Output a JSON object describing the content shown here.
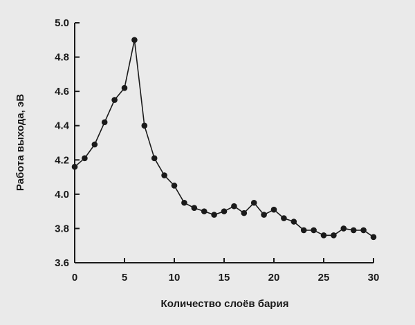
{
  "colors": {
    "background": "#eaeaea",
    "ink": "#1a1a1a"
  },
  "chart_data": {
    "type": "line",
    "title": "",
    "xlabel": "Количество слоёв бария",
    "ylabel": "Работа выхода, эВ",
    "xlim": [
      0,
      30
    ],
    "ylim": [
      3.6,
      5.0
    ],
    "xticks": [
      0,
      5,
      10,
      15,
      20,
      25,
      30
    ],
    "xtick_labels": [
      "0",
      "5",
      "10",
      "15",
      "20",
      "25",
      "30"
    ],
    "yticks": [
      3.6,
      3.8,
      4.0,
      4.2,
      4.4,
      4.6,
      4.8,
      5.0
    ],
    "ytick_labels": [
      "3.6",
      "3.8",
      "4.0",
      "4.2",
      "4.4",
      "4.6",
      "4.8",
      "5.0"
    ],
    "grid": false,
    "legend": "none",
    "series": [
      {
        "x": [
          0,
          1,
          2,
          3,
          4,
          5,
          6,
          7,
          8,
          9,
          10,
          11,
          12,
          13,
          14,
          15,
          16,
          17,
          18,
          19,
          20,
          21,
          22,
          23,
          24,
          25,
          26,
          27,
          28,
          29,
          30
        ],
        "y": [
          4.16,
          4.21,
          4.29,
          4.42,
          4.55,
          4.62,
          4.9,
          4.4,
          4.21,
          4.11,
          4.05,
          3.95,
          3.92,
          3.9,
          3.88,
          3.9,
          3.93,
          3.89,
          3.95,
          3.88,
          3.91,
          3.86,
          3.84,
          3.79,
          3.79,
          3.76,
          3.76,
          3.8,
          3.79,
          3.79,
          3.75
        ]
      }
    ]
  }
}
